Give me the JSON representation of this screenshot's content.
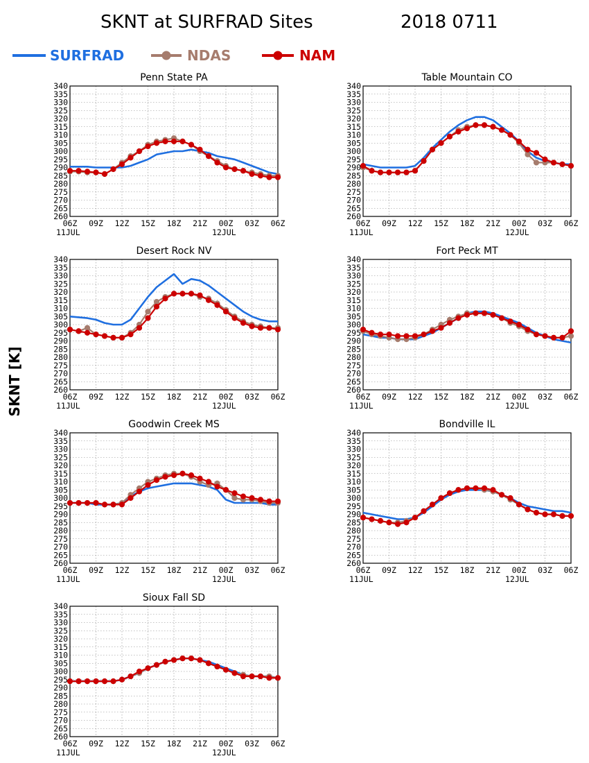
{
  "title_left": "SKNT at SURFRAD Sites",
  "title_right": "2018 0711",
  "ylabel": "SKNT [K]",
  "legend": [
    {
      "name": "SURFRAD",
      "color": "#1f6fe0",
      "marker": "none"
    },
    {
      "name": "NDAS",
      "color": "#a67c6d",
      "marker": "circle"
    },
    {
      "name": "NAM",
      "color": "#cc0000",
      "marker": "circle"
    }
  ],
  "colors": {
    "SURFRAD": "#1f6fe0",
    "NDAS": "#a67c6d",
    "NAM": "#cc0000"
  },
  "chart_data": [
    {
      "type": "line",
      "title": "Penn State PA",
      "x_ticks": [
        "06Z",
        "09Z",
        "12Z",
        "15Z",
        "18Z",
        "21Z",
        "00Z",
        "03Z",
        "06Z"
      ],
      "x_day_labels": [
        "11JUL",
        "12JUL"
      ],
      "y_ticks": [
        260,
        265,
        270,
        275,
        280,
        285,
        290,
        295,
        300,
        305,
        310,
        315,
        320,
        325,
        330,
        335,
        340
      ],
      "ylim": [
        260,
        340
      ],
      "x_hours": [
        0,
        1,
        2,
        3,
        4,
        5,
        6,
        7,
        8,
        9,
        10,
        11,
        12,
        13,
        14,
        15,
        16,
        17,
        18,
        19,
        20,
        21,
        22,
        23,
        24
      ],
      "series": [
        {
          "name": "SURFRAD",
          "values": [
            290.5,
            290.5,
            290.5,
            290,
            290,
            290,
            290,
            291,
            293,
            295,
            298,
            299,
            300,
            300,
            301,
            300,
            299,
            297,
            296,
            295,
            293,
            291,
            289,
            287,
            286
          ]
        },
        {
          "name": "NDAS",
          "values": [
            287.5,
            287.5,
            287,
            287,
            286,
            289,
            293,
            297,
            300,
            304,
            306,
            307,
            308,
            306,
            304,
            300,
            297,
            294,
            291,
            289,
            288,
            287,
            286,
            285,
            285
          ]
        },
        {
          "name": "NAM",
          "values": [
            288,
            288,
            287.5,
            287,
            286,
            289,
            292,
            296,
            300,
            303,
            305,
            306,
            306,
            306,
            304,
            301,
            297,
            293,
            290,
            289,
            288,
            286,
            285,
            284,
            284
          ]
        }
      ]
    },
    {
      "type": "line",
      "title": "Table Mountain CO",
      "x_ticks": [
        "06Z",
        "09Z",
        "12Z",
        "15Z",
        "18Z",
        "21Z",
        "00Z",
        "03Z",
        "06Z"
      ],
      "x_day_labels": [
        "11JUL",
        "12JUL"
      ],
      "y_ticks": [
        260,
        265,
        270,
        275,
        280,
        285,
        290,
        295,
        300,
        305,
        310,
        315,
        320,
        325,
        330,
        335,
        340
      ],
      "ylim": [
        260,
        340
      ],
      "x_hours": [
        0,
        1,
        2,
        3,
        4,
        5,
        6,
        7,
        8,
        9,
        10,
        11,
        12,
        13,
        14,
        15,
        16,
        17,
        18,
        19,
        20,
        21,
        22,
        23,
        24
      ],
      "series": [
        {
          "name": "SURFRAD",
          "values": [
            292,
            291,
            290,
            290,
            290,
            290,
            291,
            296,
            302,
            307,
            312,
            316,
            319,
            321,
            321,
            319,
            315,
            311,
            306,
            300,
            296,
            294,
            293,
            292,
            292
          ]
        },
        {
          "name": "NDAS",
          "values": [
            290,
            288,
            287,
            287,
            287,
            287,
            288,
            294,
            301,
            305,
            309,
            313,
            315,
            316,
            316,
            315,
            313,
            310,
            305,
            298,
            293,
            293,
            293,
            292,
            291
          ]
        },
        {
          "name": "NAM",
          "values": [
            291,
            288,
            287,
            287,
            287,
            287,
            288,
            294,
            301,
            305,
            309,
            312,
            314,
            316,
            316,
            315,
            313,
            310,
            306,
            301,
            299,
            295,
            293,
            292,
            291
          ]
        }
      ]
    },
    {
      "type": "line",
      "title": "Desert Rock NV",
      "x_ticks": [
        "06Z",
        "09Z",
        "12Z",
        "15Z",
        "18Z",
        "21Z",
        "00Z",
        "03Z",
        "06Z"
      ],
      "x_day_labels": [
        "11JUL",
        "12JUL"
      ],
      "y_ticks": [
        260,
        265,
        270,
        275,
        280,
        285,
        290,
        295,
        300,
        305,
        310,
        315,
        320,
        325,
        330,
        335,
        340
      ],
      "ylim": [
        260,
        340
      ],
      "x_hours": [
        0,
        1,
        2,
        3,
        4,
        5,
        6,
        7,
        8,
        9,
        10,
        11,
        12,
        13,
        14,
        15,
        16,
        17,
        18,
        19,
        20,
        21,
        22,
        23,
        24
      ],
      "series": [
        {
          "name": "SURFRAD",
          "values": [
            305,
            304.5,
            304,
            303,
            301,
            300,
            300,
            303,
            310,
            317,
            323,
            327,
            331,
            325,
            328,
            327,
            324,
            320,
            316,
            312,
            308,
            305,
            303,
            302,
            302
          ]
        },
        {
          "name": "NDAS",
          "values": [
            297,
            296,
            298,
            294,
            293,
            292,
            292,
            295,
            300,
            308,
            314,
            317,
            319,
            319,
            319,
            317,
            316,
            313,
            309,
            305,
            302,
            300,
            299,
            298,
            298
          ]
        },
        {
          "name": "NAM",
          "values": [
            297,
            296,
            295,
            294,
            293,
            292,
            292,
            294,
            298,
            304,
            311,
            316,
            319,
            319,
            319,
            318,
            315,
            312,
            308,
            304,
            301,
            299,
            298,
            298,
            297
          ]
        }
      ]
    },
    {
      "type": "line",
      "title": "Fort Peck MT",
      "x_ticks": [
        "06Z",
        "09Z",
        "12Z",
        "15Z",
        "18Z",
        "21Z",
        "00Z",
        "03Z",
        "06Z"
      ],
      "x_day_labels": [
        "11JUL",
        "12JUL"
      ],
      "y_ticks": [
        260,
        265,
        270,
        275,
        280,
        285,
        290,
        295,
        300,
        305,
        310,
        315,
        320,
        325,
        330,
        335,
        340
      ],
      "ylim": [
        260,
        340
      ],
      "x_hours": [
        0,
        1,
        2,
        3,
        4,
        5,
        6,
        7,
        8,
        9,
        10,
        11,
        12,
        13,
        14,
        15,
        16,
        17,
        18,
        19,
        20,
        21,
        22,
        23,
        24
      ],
      "series": [
        {
          "name": "SURFRAD",
          "values": [
            294,
            293,
            292,
            292,
            291,
            291,
            291,
            293,
            295,
            298,
            301,
            304,
            307,
            308,
            308,
            307,
            305,
            303,
            301,
            298,
            295,
            293,
            291,
            290,
            289
          ]
        },
        {
          "name": "NDAS",
          "values": [
            296,
            294,
            293,
            292,
            291,
            291,
            292,
            294,
            297,
            300,
            303,
            305,
            307,
            307,
            307,
            306,
            304,
            301,
            299,
            296,
            294,
            293,
            292,
            292,
            293
          ]
        },
        {
          "name": "NAM",
          "values": [
            297,
            295,
            294,
            294,
            293,
            293,
            293,
            294,
            296,
            298,
            301,
            304,
            306,
            307,
            307,
            306,
            304,
            302,
            300,
            297,
            294,
            293,
            292,
            292,
            296
          ]
        }
      ]
    },
    {
      "type": "line",
      "title": "Goodwin Creek MS",
      "x_ticks": [
        "06Z",
        "09Z",
        "12Z",
        "15Z",
        "18Z",
        "21Z",
        "00Z",
        "03Z",
        "06Z"
      ],
      "x_day_labels": [
        "11JUL",
        "12JUL"
      ],
      "y_ticks": [
        260,
        265,
        270,
        275,
        280,
        285,
        290,
        295,
        300,
        305,
        310,
        315,
        320,
        325,
        330,
        335,
        340
      ],
      "ylim": [
        260,
        340
      ],
      "x_hours": [
        0,
        1,
        2,
        3,
        4,
        5,
        6,
        7,
        8,
        9,
        10,
        11,
        12,
        13,
        14,
        15,
        16,
        17,
        18,
        19,
        20,
        21,
        22,
        23,
        24
      ],
      "series": [
        {
          "name": "SURFRAD",
          "values": [
            297,
            297,
            297,
            296,
            296,
            296,
            297,
            301,
            304,
            306,
            307,
            308,
            309,
            309,
            309,
            308,
            307,
            305,
            299,
            297,
            297,
            297,
            297,
            296,
            296
          ]
        },
        {
          "name": "NDAS",
          "values": [
            297,
            297,
            297,
            297,
            296,
            296,
            297,
            302,
            306,
            310,
            312,
            314,
            315,
            315,
            313,
            310,
            308,
            309,
            305,
            300,
            299,
            299,
            298,
            297,
            297
          ]
        },
        {
          "name": "NAM",
          "values": [
            297,
            297,
            297,
            297,
            296,
            296,
            296,
            300,
            304,
            308,
            311,
            313,
            314,
            315,
            314,
            312,
            310,
            307,
            305,
            303,
            301,
            300,
            299,
            298,
            298
          ]
        }
      ]
    },
    {
      "type": "line",
      "title": "Bondville IL",
      "x_ticks": [
        "06Z",
        "09Z",
        "12Z",
        "15Z",
        "18Z",
        "21Z",
        "00Z",
        "03Z",
        "06Z"
      ],
      "x_day_labels": [
        "11JUL",
        "12JUL"
      ],
      "y_ticks": [
        260,
        265,
        270,
        275,
        280,
        285,
        290,
        295,
        300,
        305,
        310,
        315,
        320,
        325,
        330,
        335,
        340
      ],
      "ylim": [
        260,
        340
      ],
      "x_hours": [
        0,
        1,
        2,
        3,
        4,
        5,
        6,
        7,
        8,
        9,
        10,
        11,
        12,
        13,
        14,
        15,
        16,
        17,
        18,
        19,
        20,
        21,
        22,
        23,
        24
      ],
      "series": [
        {
          "name": "SURFRAD",
          "values": [
            291,
            290,
            289,
            288,
            287,
            287,
            288,
            291,
            295,
            299,
            302,
            304,
            305,
            305,
            305,
            304,
            302,
            300,
            297,
            295,
            294,
            293,
            292,
            292,
            291
          ]
        },
        {
          "name": "NDAS",
          "values": [
            288,
            287,
            286,
            285,
            285,
            286,
            288,
            292,
            296,
            300,
            303,
            305,
            306,
            306,
            305,
            304,
            302,
            299,
            296,
            293,
            291,
            290,
            290,
            289,
            289
          ]
        },
        {
          "name": "NAM",
          "values": [
            288,
            287,
            286,
            285,
            284,
            285,
            288,
            292,
            296,
            300,
            303,
            305,
            306,
            306,
            306,
            305,
            302,
            300,
            296,
            293,
            291,
            290,
            290,
            289,
            289
          ]
        }
      ]
    },
    {
      "type": "line",
      "title": "Sioux Fall SD",
      "x_ticks": [
        "06Z",
        "09Z",
        "12Z",
        "15Z",
        "18Z",
        "21Z",
        "00Z",
        "03Z",
        "06Z"
      ],
      "x_day_labels": [
        "11JUL",
        "12JUL"
      ],
      "y_ticks": [
        260,
        265,
        270,
        275,
        280,
        285,
        290,
        295,
        300,
        305,
        310,
        315,
        320,
        325,
        330,
        335,
        340
      ],
      "ylim": [
        260,
        340
      ],
      "x_hours": [
        0,
        1,
        2,
        3,
        4,
        5,
        6,
        7,
        8,
        9,
        10,
        11,
        12,
        13,
        14,
        15,
        16,
        17,
        18,
        19,
        20,
        21,
        22,
        23,
        24
      ],
      "series": [
        {
          "name": "SURFRAD",
          "values": [
            294,
            294,
            294,
            294,
            294,
            294,
            295,
            297,
            299,
            302,
            304,
            306,
            307,
            308,
            308,
            307,
            306,
            304,
            302,
            300,
            298,
            297,
            297,
            297,
            296
          ]
        },
        {
          "name": "NDAS",
          "values": [
            294,
            294,
            294,
            294,
            294,
            294,
            295,
            297,
            299,
            302,
            304,
            306,
            307,
            308,
            308,
            307,
            305,
            303,
            301,
            299,
            298,
            297,
            297,
            297,
            296
          ]
        },
        {
          "name": "NAM",
          "values": [
            294,
            294,
            294,
            294,
            294,
            294,
            295,
            297,
            300,
            302,
            304,
            306,
            307,
            308,
            308,
            307,
            305,
            303,
            301,
            299,
            297,
            297,
            297,
            296,
            296
          ]
        }
      ]
    }
  ]
}
